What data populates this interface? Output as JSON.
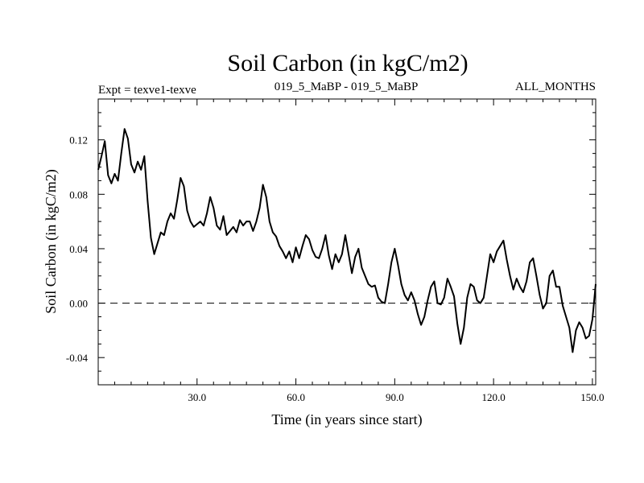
{
  "chart_data": {
    "type": "line",
    "title": "Soil Carbon (in kgC/m2)",
    "subtitle_left": "Expt = texve1-texve",
    "subtitle_center": "019_5_MaBP - 019_5_MaBP",
    "subtitle_right": "ALL_MONTHS",
    "xlabel": "Time (in years since start)",
    "ylabel": "Soil Carbon (in kgC/m2)",
    "xlim": [
      0,
      151
    ],
    "ylim": [
      -0.06,
      0.15
    ],
    "xticks": [
      30,
      60,
      90,
      120,
      150
    ],
    "xtick_labels": [
      "30.0",
      "60.0",
      "90.0",
      "120.0",
      "150.0"
    ],
    "yticks": [
      -0.04,
      0.0,
      0.04,
      0.08,
      0.12
    ],
    "ytick_labels": [
      "-0.04",
      "0.00",
      "0.04",
      "0.08",
      "0.12"
    ],
    "reference_line": 0.0,
    "grid": false,
    "series": [
      {
        "color": "#000000",
        "x": [
          0,
          1,
          2,
          3,
          4,
          5,
          6,
          7,
          8,
          9,
          10,
          11,
          12,
          13,
          14,
          15,
          16,
          17,
          18,
          19,
          20,
          21,
          22,
          23,
          24,
          25,
          26,
          27,
          28,
          29,
          30,
          31,
          32,
          33,
          34,
          35,
          36,
          37,
          38,
          39,
          40,
          41,
          42,
          43,
          44,
          45,
          46,
          47,
          48,
          49,
          50,
          51,
          52,
          53,
          54,
          55,
          56,
          57,
          58,
          59,
          60,
          61,
          62,
          63,
          64,
          65,
          66,
          67,
          68,
          69,
          70,
          71,
          72,
          73,
          74,
          75,
          76,
          77,
          78,
          79,
          80,
          81,
          82,
          83,
          84,
          85,
          86,
          87,
          88,
          89,
          90,
          91,
          92,
          93,
          94,
          95,
          96,
          97,
          98,
          99,
          100,
          101,
          102,
          103,
          104,
          105,
          106,
          107,
          108,
          109,
          110,
          111,
          112,
          113,
          114,
          115,
          116,
          117,
          118,
          119,
          120,
          121,
          122,
          123,
          124,
          125,
          126,
          127,
          128,
          129,
          130,
          131,
          132,
          133,
          134,
          135,
          136,
          137,
          138,
          139,
          140,
          141,
          142,
          143,
          144,
          145,
          146,
          147,
          148,
          149,
          150,
          151
        ],
        "y": [
          0.098,
          0.108,
          0.119,
          0.094,
          0.088,
          0.095,
          0.09,
          0.11,
          0.128,
          0.121,
          0.102,
          0.096,
          0.104,
          0.098,
          0.108,
          0.075,
          0.048,
          0.036,
          0.044,
          0.052,
          0.05,
          0.06,
          0.066,
          0.062,
          0.076,
          0.092,
          0.086,
          0.068,
          0.06,
          0.056,
          0.058,
          0.06,
          0.057,
          0.066,
          0.078,
          0.07,
          0.057,
          0.054,
          0.064,
          0.05,
          0.053,
          0.056,
          0.052,
          0.061,
          0.057,
          0.06,
          0.06,
          0.053,
          0.06,
          0.07,
          0.087,
          0.078,
          0.06,
          0.052,
          0.049,
          0.042,
          0.038,
          0.033,
          0.038,
          0.03,
          0.041,
          0.033,
          0.042,
          0.05,
          0.047,
          0.039,
          0.034,
          0.033,
          0.04,
          0.05,
          0.035,
          0.025,
          0.036,
          0.03,
          0.036,
          0.05,
          0.036,
          0.022,
          0.034,
          0.04,
          0.026,
          0.02,
          0.014,
          0.012,
          0.013,
          0.004,
          0.001,
          0.0,
          0.014,
          0.03,
          0.04,
          0.028,
          0.014,
          0.006,
          0.002,
          0.008,
          0.002,
          -0.008,
          -0.016,
          -0.01,
          0.002,
          0.012,
          0.016,
          0.0,
          -0.001,
          0.004,
          0.018,
          0.012,
          0.005,
          -0.015,
          -0.03,
          -0.018,
          0.004,
          0.014,
          0.012,
          0.002,
          0.0,
          0.004,
          0.02,
          0.036,
          0.03,
          0.038,
          0.042,
          0.046,
          0.032,
          0.02,
          0.01,
          0.018,
          0.012,
          0.008,
          0.016,
          0.03,
          0.033,
          0.02,
          0.006,
          -0.004,
          0.0,
          0.02,
          0.024,
          0.012,
          0.012,
          -0.002,
          -0.01,
          -0.018,
          -0.036,
          -0.02,
          -0.014,
          -0.018,
          -0.026,
          -0.024,
          -0.012,
          0.014
        ]
      }
    ]
  }
}
